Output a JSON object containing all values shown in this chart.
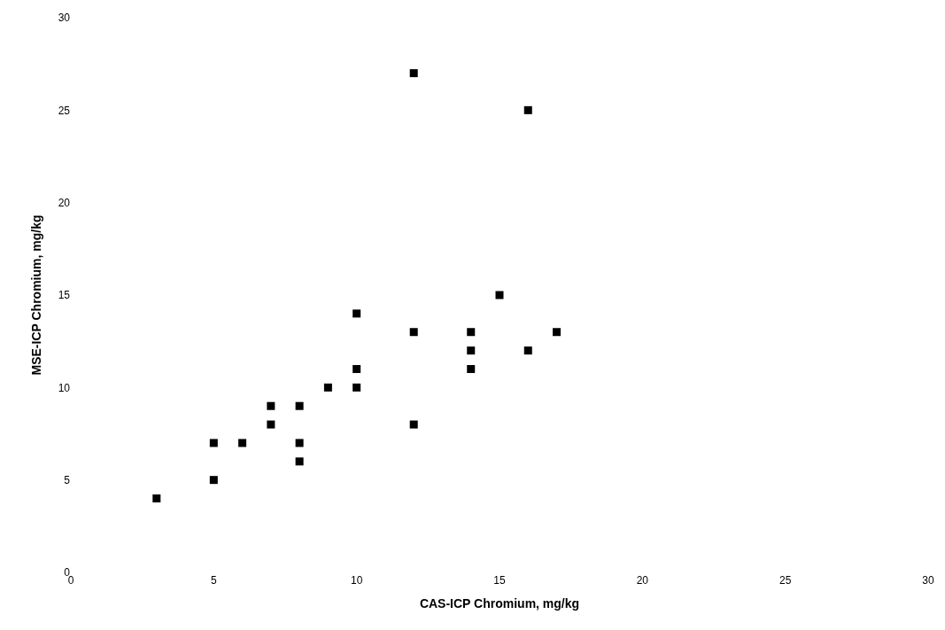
{
  "chart_data": {
    "type": "scatter",
    "xlabel": "CAS-ICP Chromium, mg/kg",
    "ylabel": "MSE-ICP Chromium, mg/kg",
    "x": [
      3,
      5,
      5,
      6,
      7,
      7,
      8,
      8,
      8,
      9,
      10,
      10,
      10,
      12,
      12,
      12,
      14,
      14,
      14,
      15,
      16,
      16,
      17
    ],
    "values": [
      4,
      7,
      5,
      7,
      9,
      8,
      9,
      7,
      6,
      10,
      14,
      11,
      10,
      27,
      13,
      8,
      13,
      12,
      11,
      15,
      25,
      12,
      13
    ],
    "color": "#000000",
    "marker": "square",
    "xlim": [
      0,
      30
    ],
    "xticks": [
      0,
      5,
      10,
      15,
      20,
      25,
      30
    ],
    "ylim": [
      0,
      30
    ],
    "yticks": [
      0,
      5,
      10,
      15,
      20,
      25,
      30
    ],
    "grid": false
  }
}
